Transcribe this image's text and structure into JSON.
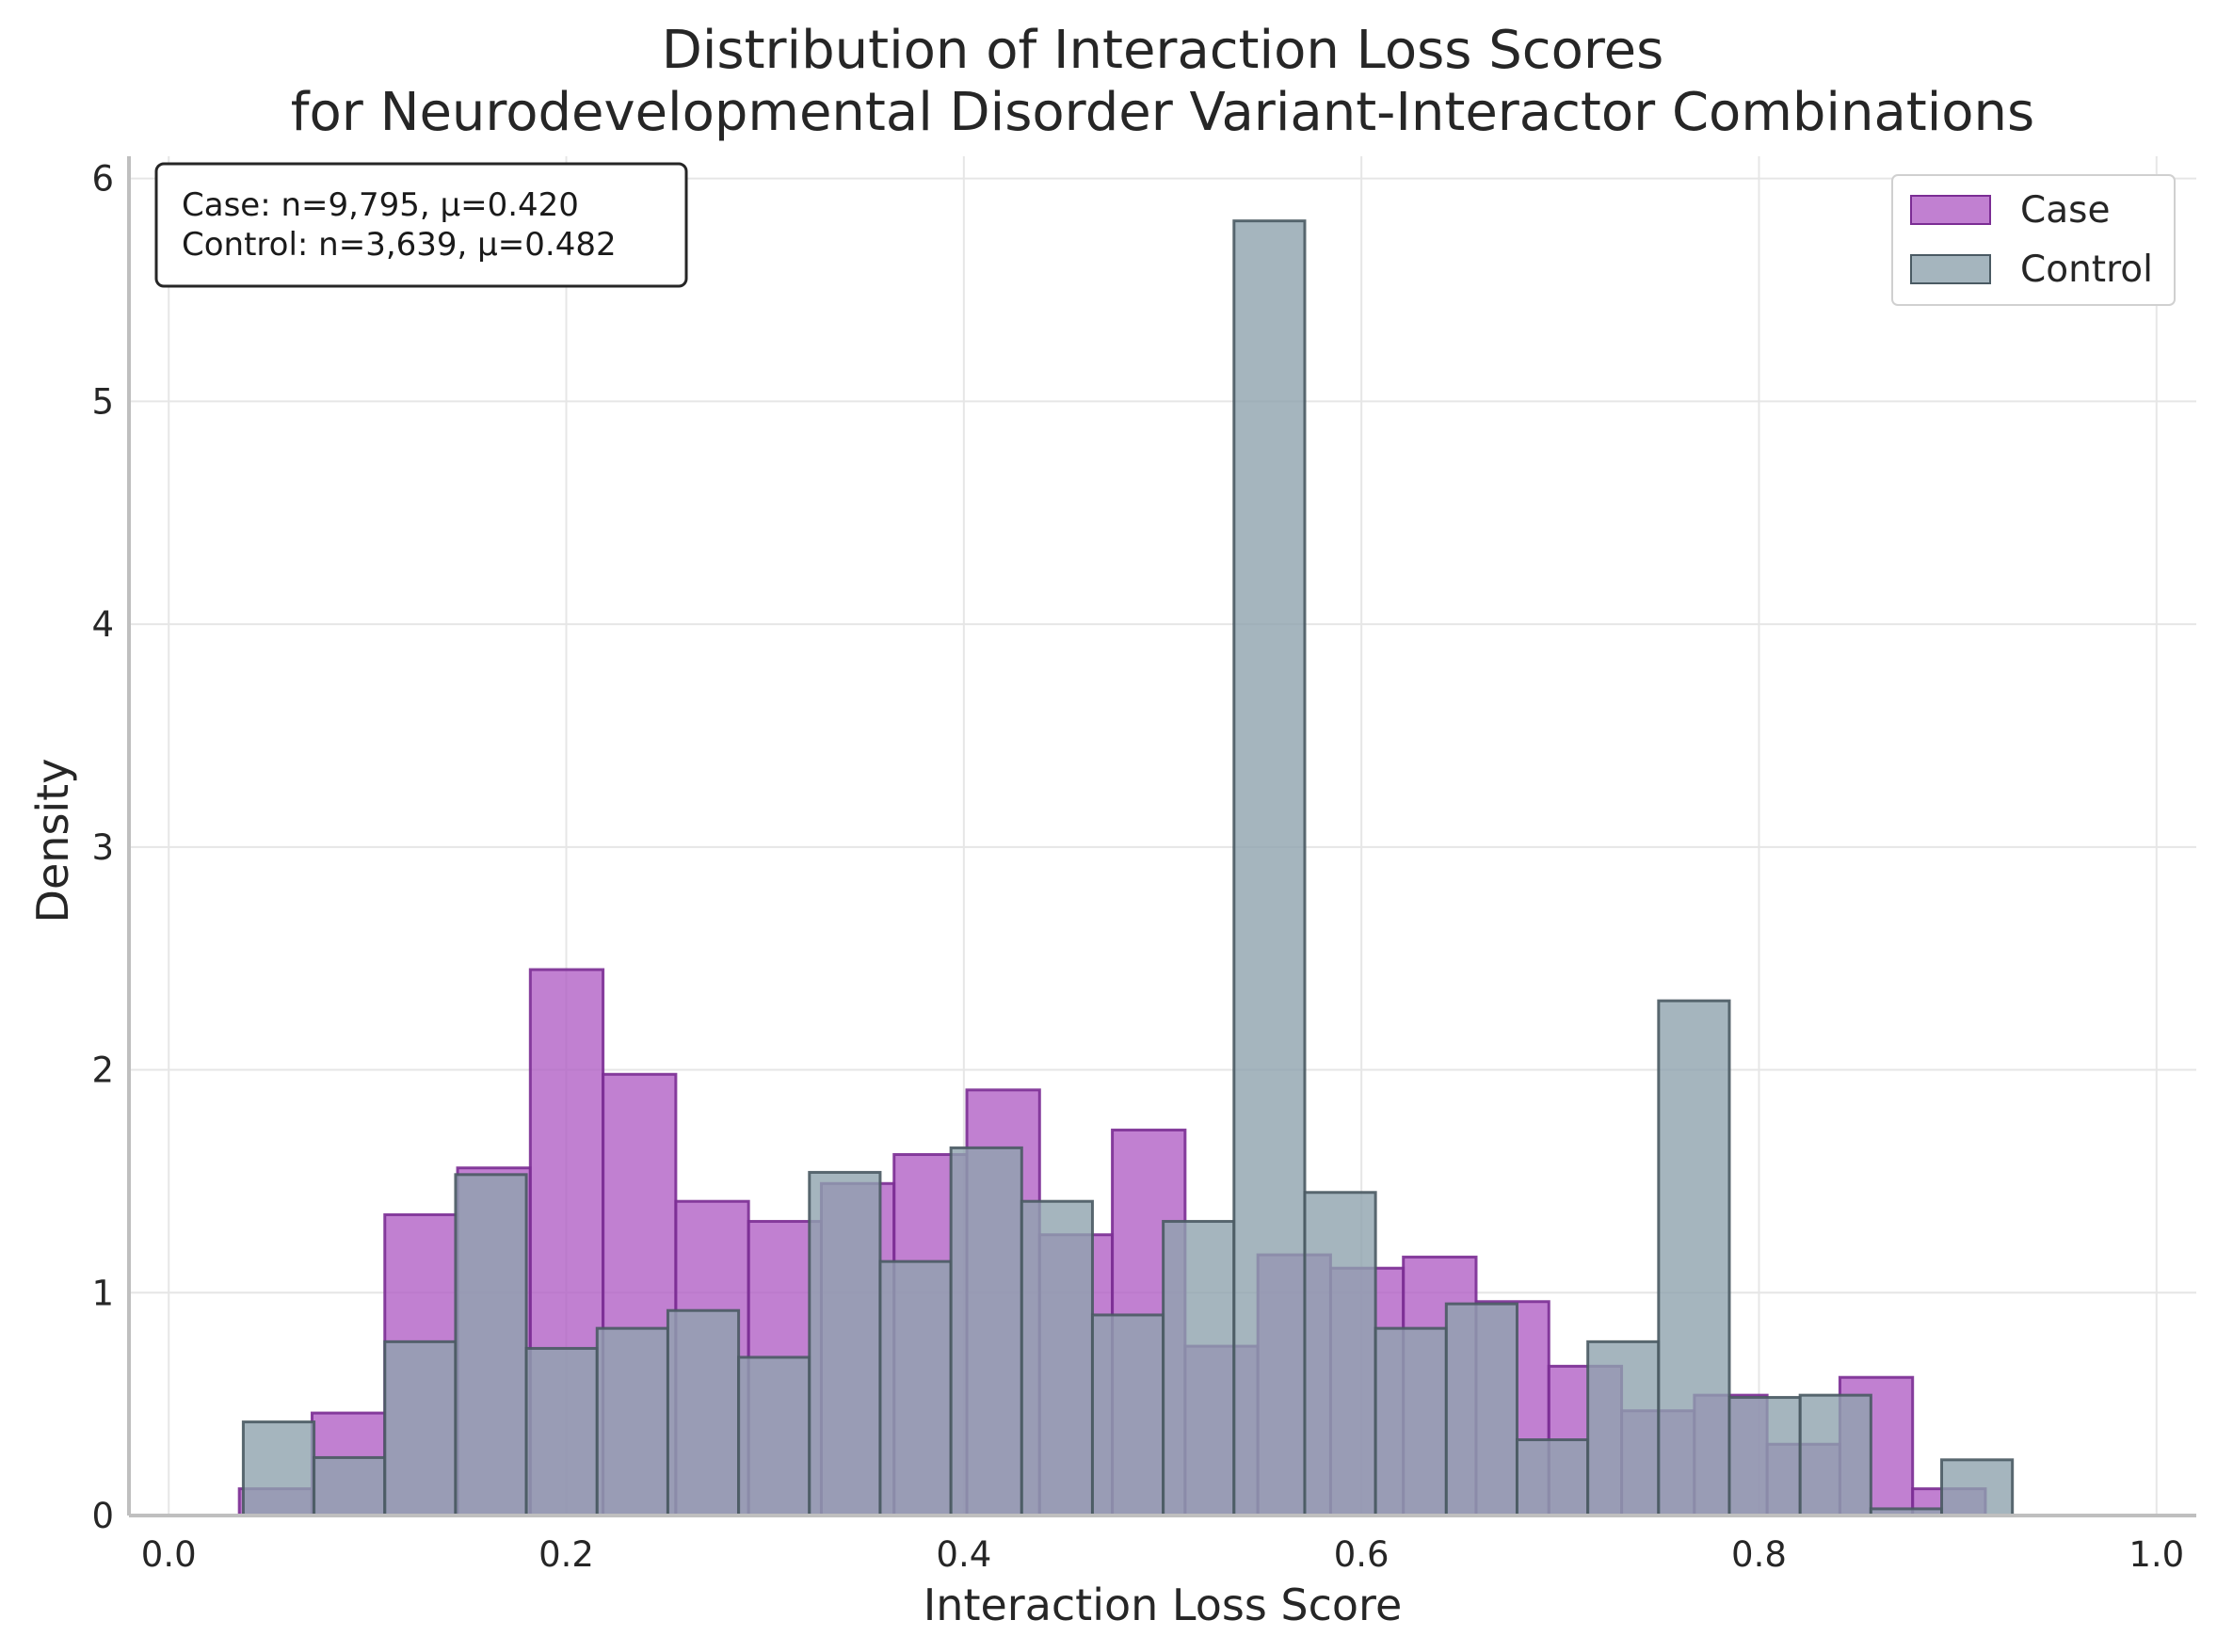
{
  "chart_data": {
    "type": "bar",
    "title": [
      "Distribution of Interaction Loss Scores",
      "for Neurodevelopmental Disorder Variant-Interactor Combinations"
    ],
    "xlabel": "Interaction Loss Score",
    "ylabel": "Density",
    "xlim": [
      -0.02,
      1.02
    ],
    "ylim": [
      0,
      6.1
    ],
    "xticks": [
      0.0,
      0.2,
      0.4,
      0.6,
      0.8,
      1.0
    ],
    "xtick_labels": [
      "0.0",
      "0.2",
      "0.4",
      "0.6",
      "0.8",
      "1.0"
    ],
    "yticks": [
      0,
      1,
      2,
      3,
      4,
      5,
      6
    ],
    "ytick_labels": [
      "0",
      "1",
      "2",
      "3",
      "4",
      "5",
      "6"
    ],
    "grid": true,
    "legend_position": "top-right",
    "stats_box": {
      "position": "top-left",
      "lines": [
        "Case: n=9,795, μ=0.420",
        "Control: n=3,639, μ=0.482"
      ]
    },
    "series": [
      {
        "name": "Case",
        "color": "#b05cc4",
        "edge_color": "#7b2d94",
        "bin_start": 0.0355,
        "bin_width": 0.0366,
        "values": [
          0.12,
          0.46,
          1.35,
          1.56,
          2.45,
          1.98,
          1.41,
          1.32,
          1.49,
          1.62,
          1.91,
          1.26,
          1.73,
          0.76,
          1.17,
          1.11,
          1.16,
          0.96,
          0.67,
          0.47,
          0.54,
          0.32,
          0.62,
          0.12
        ]
      },
      {
        "name": "Control",
        "color": "#8fa3ae",
        "edge_color": "#4a5a63",
        "bin_start": 0.0375,
        "bin_width": 0.0356,
        "values": [
          0.42,
          0.26,
          0.78,
          1.53,
          0.75,
          0.84,
          0.92,
          0.71,
          1.54,
          1.14,
          1.65,
          1.41,
          0.9,
          1.32,
          5.81,
          1.45,
          0.84,
          0.95,
          0.34,
          0.78,
          2.31,
          0.53,
          0.54,
          0.03,
          0.25
        ]
      }
    ]
  }
}
